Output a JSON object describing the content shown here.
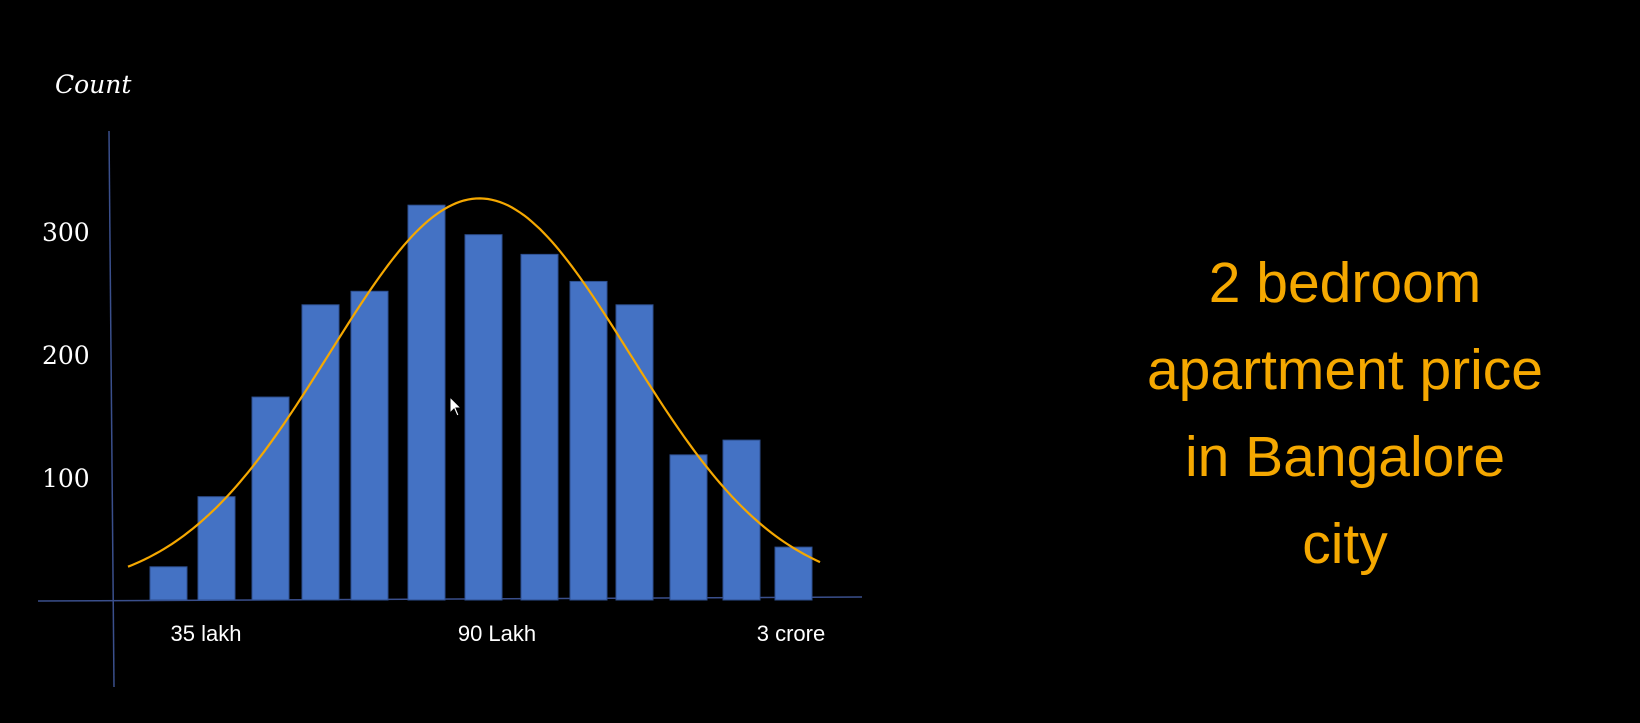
{
  "slide": {
    "title_lines": [
      "2 bedroom",
      "apartment price",
      "in Bangalore",
      "city"
    ]
  },
  "colors": {
    "background": "#000000",
    "bar": "#4472c4",
    "curve": "#f5a800",
    "axis": "#3a4f8c",
    "title": "#f5a800"
  },
  "chart_data": {
    "type": "bar",
    "ylabel": "Count",
    "yticks": [
      100,
      200,
      300
    ],
    "ylim": [
      0,
      360
    ],
    "x_labels": [
      {
        "text": "35 lakh",
        "bar_index": 1
      },
      {
        "text": "90 Lakh",
        "bar_index": 6
      },
      {
        "text": "3 crore",
        "bar_index": 13
      }
    ],
    "values": [
      27,
      84,
      165,
      240,
      251,
      321,
      297,
      281,
      259,
      240,
      118,
      130,
      43
    ],
    "overlay": {
      "type": "normal-curve",
      "peak_bar_index": 6,
      "peak_value": 320
    },
    "grid": false,
    "legend": "none"
  },
  "cursor_icon": "arrow-pointer-icon"
}
